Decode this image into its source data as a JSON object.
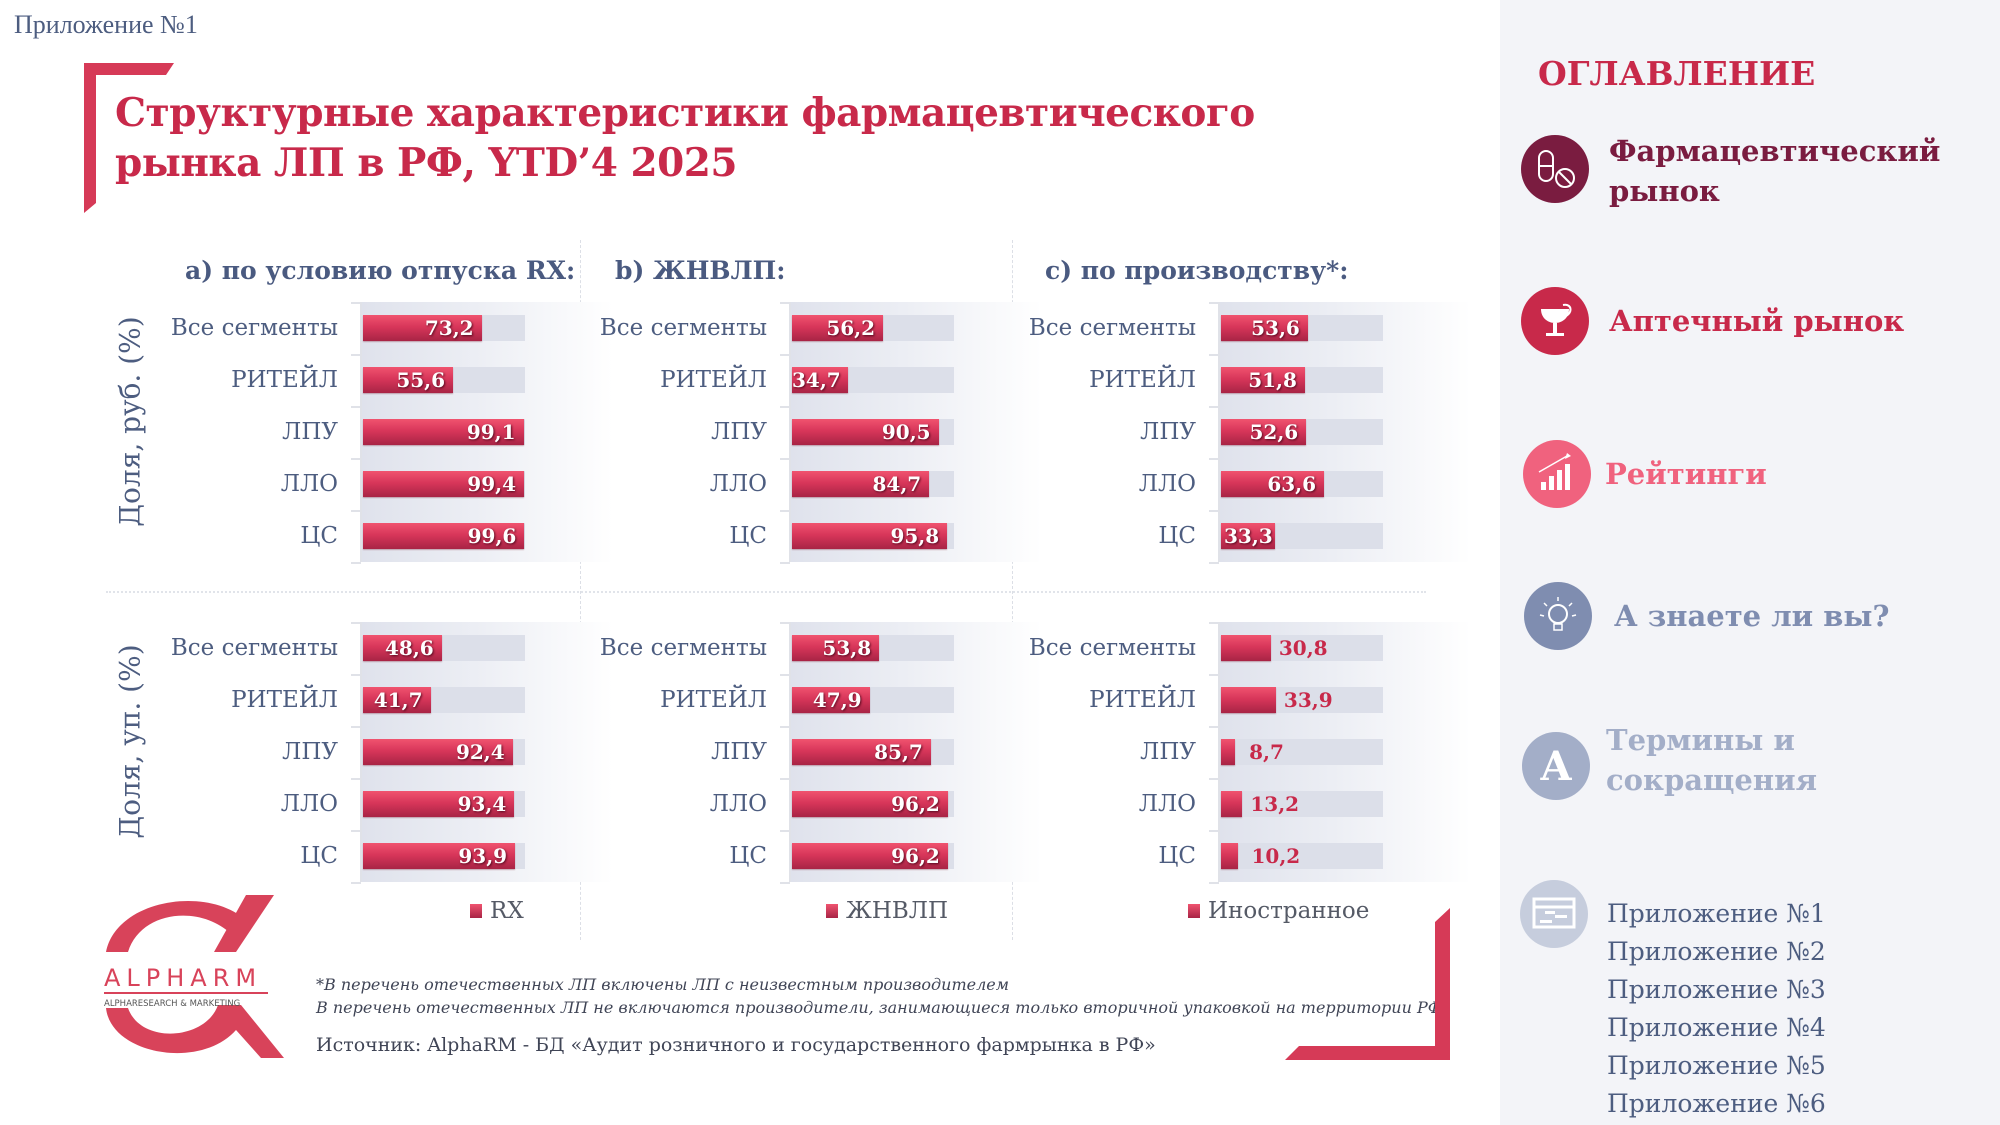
{
  "header": {
    "appendix_label": "Приложение №1",
    "title_line1": "Структурные характеристики фармацевтического",
    "title_line2": "рынка ЛП в РФ, YTD’4 2025"
  },
  "colors": {
    "accent": "#c8294a",
    "bar_top": "#f0536f",
    "bar_bottom": "#a82445",
    "track": "#dcdfe9",
    "text": "#4d5d80",
    "sidebar_bg": "#f3f4f8"
  },
  "chart_data": {
    "type": "bar",
    "orientation": "horizontal",
    "xlim": [
      0,
      100
    ],
    "categories": [
      "Все сегменты",
      "РИТЕЙЛ",
      "ЛПУ",
      "ЛЛО",
      "ЦС"
    ],
    "row_titles": [
      "Доля, руб. (%)",
      "Доля, уп. (%)"
    ],
    "panels": [
      {
        "title": "a) по условию отпуска RX:",
        "legend": "RX",
        "rub": [
          73.2,
          55.6,
          99.1,
          99.4,
          99.6
        ],
        "rub_labels": [
          "73,2",
          "55,6",
          "99,1",
          "99,4",
          "99,6"
        ],
        "up": [
          48.6,
          41.7,
          92.4,
          93.4,
          93.9
        ],
        "up_labels": [
          "48,6",
          "41,7",
          "92,4",
          "93,4",
          "93,9"
        ]
      },
      {
        "title": "b) ЖНВЛП:",
        "legend": "ЖНВЛП",
        "rub": [
          56.2,
          34.7,
          90.5,
          84.7,
          95.8
        ],
        "rub_labels": [
          "56,2",
          "34,7",
          "90,5",
          "84,7",
          "95,8"
        ],
        "up": [
          53.8,
          47.9,
          85.7,
          96.2,
          96.2
        ],
        "up_labels": [
          "53,8",
          "47,9",
          "85,7",
          "96,2",
          "96,2"
        ]
      },
      {
        "title": "c) по производству*:",
        "legend": "Иностранное",
        "rub": [
          53.6,
          51.8,
          52.6,
          63.6,
          33.3
        ],
        "rub_labels": [
          "53,6",
          "51,8",
          "52,6",
          "63,6",
          "33,3"
        ],
        "up": [
          30.8,
          33.9,
          8.7,
          13.2,
          10.2
        ],
        "up_labels": [
          "30,8",
          "33,9",
          "8,7",
          "13,2",
          "10,2"
        ]
      }
    ]
  },
  "footer": {
    "note1": "*В перечень отечественных ЛП включены ЛП с неизвестным производителем",
    "note2": "В перечень отечественных ЛП не включаются производители, занимающиеся только вторичной упаковкой на территории РФ",
    "source": "Источник: AlphaRM - БД «Аудит розничного и государственного фармрынка в РФ»",
    "logo_name": "ALPHARM",
    "logo_tagline": "ALPHARESEARCH & MARKETING"
  },
  "sidebar": {
    "title": "ОГЛАВЛЕНИЕ",
    "items": [
      {
        "line1": "Фармацевтический",
        "line2": "рынок",
        "icon": "pills-icon",
        "color": "#7a1c40"
      },
      {
        "line1": "Аптечный рынок",
        "line2": "",
        "icon": "pharmacy-bowl-icon",
        "color": "#c8294a"
      },
      {
        "line1": "Рейтинги",
        "line2": "",
        "icon": "rating-chart-icon",
        "color": "#f0627e"
      },
      {
        "line1": "А знаете ли вы?",
        "line2": "",
        "icon": "lightbulb-icon",
        "color": "#7f8db0"
      },
      {
        "line1": "Термины и",
        "line2": "сокращения",
        "icon": "letter-a-icon",
        "color": "#a3aec8"
      }
    ],
    "appendix_icon": "document-icon",
    "appendices": [
      "Приложение №1",
      "Приложение №2",
      "Приложение №3",
      "Приложение №4",
      "Приложение №5",
      "Приложение №6"
    ]
  }
}
